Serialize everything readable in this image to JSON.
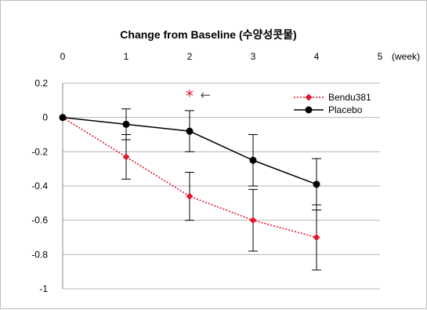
{
  "chart_data": {
    "type": "line",
    "title": "Change from Baseline (수양성콧물)",
    "x": [
      0,
      1,
      2,
      3,
      4
    ],
    "x_ticks": [
      "0",
      "1",
      "2",
      "3",
      "4",
      "5"
    ],
    "x_unit_label": "(week)",
    "xlim": [
      0,
      5
    ],
    "ylim": [
      -1,
      0.2
    ],
    "y_ticks": [
      "0.2",
      "0",
      "-0.2",
      "-0.4",
      "-0.6",
      "-0.8",
      "-1"
    ],
    "grid": "horizontal",
    "legend_position": "top-right",
    "series": [
      {
        "name": "Bendu381",
        "color": "#e0182d",
        "line_style": "dotted",
        "marker": "diamond",
        "values": [
          0,
          -0.23,
          -0.46,
          -0.6,
          -0.7
        ],
        "error": [
          0,
          0.13,
          0.14,
          0.18,
          0.19
        ]
      },
      {
        "name": "Placebo",
        "color": "#000000",
        "line_style": "solid",
        "marker": "circle",
        "values": [
          0,
          -0.04,
          -0.08,
          -0.25,
          -0.39
        ],
        "error": [
          0,
          0.09,
          0.12,
          0.15,
          0.15
        ]
      }
    ],
    "annotations": [
      {
        "text": "*",
        "x": 2,
        "y": 0.13,
        "color": "#e0182d"
      },
      {
        "text": "←",
        "x": 2.25,
        "y": 0.13,
        "color": "#555555"
      }
    ]
  }
}
